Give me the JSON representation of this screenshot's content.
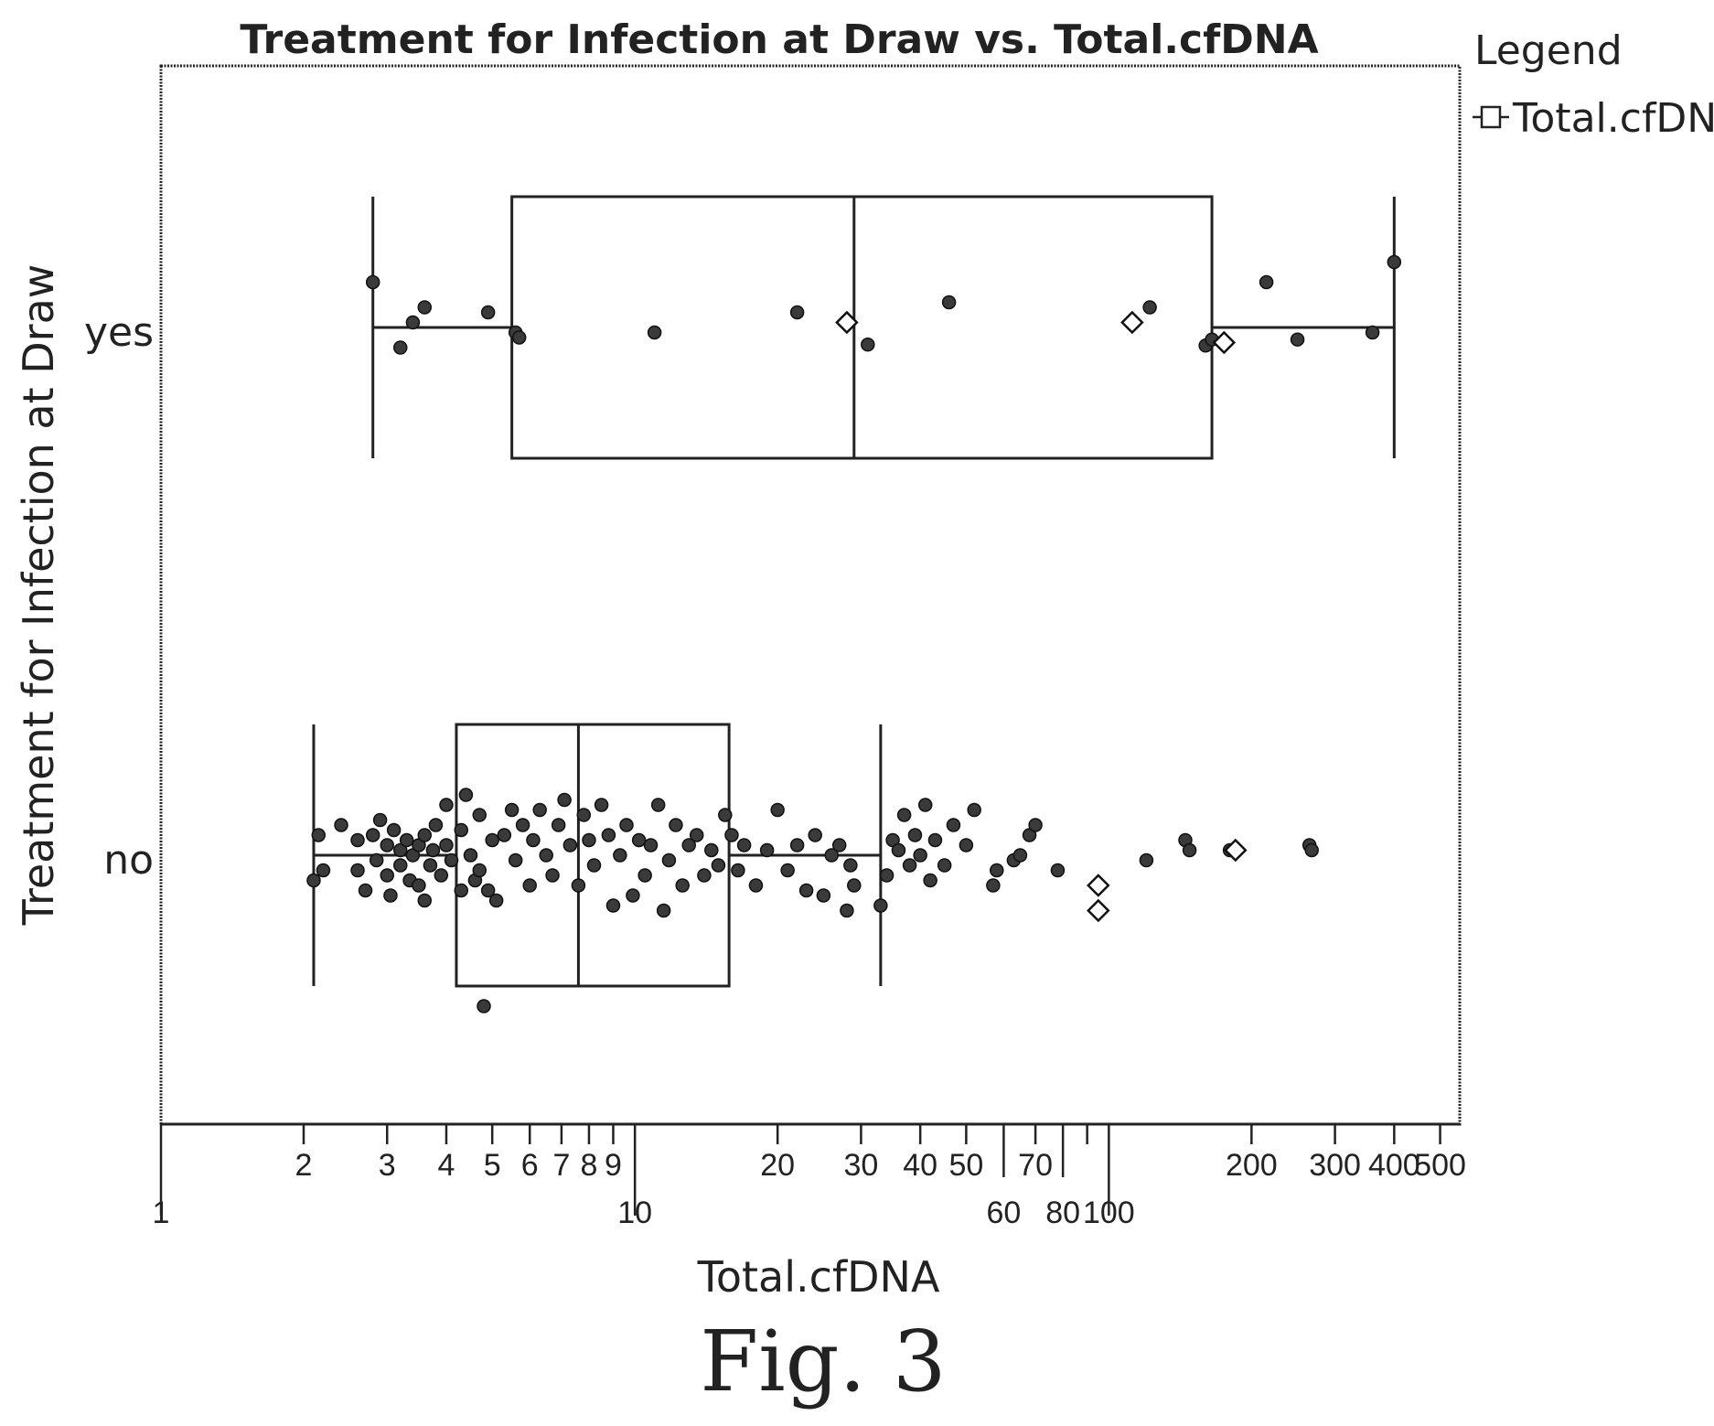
{
  "chart_data": {
    "type": "box",
    "title": "Treatment for Infection at Draw vs. Total.cfDNA",
    "xlabel": "Total.cfDNA",
    "ylabel": "Treatment for Infection at Draw",
    "x_scale": "log",
    "xlim": [
      1,
      550
    ],
    "x_ticks": [
      {
        "value": 1,
        "label": "1",
        "row": 2
      },
      {
        "value": 2,
        "label": "2",
        "row": 1
      },
      {
        "value": 3,
        "label": "3",
        "row": 1
      },
      {
        "value": 4,
        "label": "4",
        "row": 1
      },
      {
        "value": 5,
        "label": "5",
        "row": 1
      },
      {
        "value": 6,
        "label": "6",
        "row": 1
      },
      {
        "value": 7,
        "label": "7",
        "row": 1
      },
      {
        "value": 8,
        "label": "8",
        "row": 1
      },
      {
        "value": 9,
        "label": "9",
        "row": 1
      },
      {
        "value": 10,
        "label": "10",
        "row": 2
      },
      {
        "value": 20,
        "label": "20",
        "row": 1
      },
      {
        "value": 30,
        "label": "30",
        "row": 1
      },
      {
        "value": 40,
        "label": "40",
        "row": 1
      },
      {
        "value": 50,
        "label": "50",
        "row": 1
      },
      {
        "value": 60,
        "label": "60",
        "row": 2
      },
      {
        "value": 70,
        "label": "70",
        "row": 1
      },
      {
        "value": 80,
        "label": "80",
        "row": 2
      },
      {
        "value": 90,
        "label": "",
        "row": 1
      },
      {
        "value": 100,
        "label": "100",
        "row": 2
      },
      {
        "value": 200,
        "label": "200",
        "row": 1
      },
      {
        "value": 300,
        "label": "300",
        "row": 1
      },
      {
        "value": 400,
        "label": "400",
        "row": 1
      },
      {
        "value": 500,
        "label": "500",
        "row": 1
      }
    ],
    "categories": [
      "yes",
      "no"
    ],
    "boxes": [
      {
        "category": "yes",
        "whisker_low": 2.8,
        "q1": 5.5,
        "median": 29,
        "q3": 165,
        "whisker_high": 400
      },
      {
        "category": "no",
        "whisker_low": 2.1,
        "q1": 4.2,
        "median": 7.6,
        "q3": 15.8,
        "whisker_high": 33
      }
    ],
    "points": {
      "yes": [
        [
          2.8,
          0.45
        ],
        [
          3.2,
          -0.2
        ],
        [
          3.4,
          0.05
        ],
        [
          3.6,
          0.2
        ],
        [
          4.9,
          0.15
        ],
        [
          5.6,
          -0.05
        ],
        [
          5.7,
          -0.1
        ],
        [
          11,
          -0.05
        ],
        [
          22,
          0.15
        ],
        [
          31,
          -0.17
        ],
        [
          46,
          0.25
        ],
        [
          122,
          0.2
        ],
        [
          160,
          -0.18
        ],
        [
          165,
          -0.12
        ],
        [
          215,
          0.45
        ],
        [
          250,
          -0.12
        ],
        [
          360,
          -0.05
        ],
        [
          400,
          0.65
        ]
      ],
      "no": [
        [
          2.1,
          -0.25
        ],
        [
          2.15,
          0.2
        ],
        [
          2.2,
          -0.15
        ],
        [
          2.4,
          0.3
        ],
        [
          2.6,
          0.15
        ],
        [
          2.6,
          -0.15
        ],
        [
          2.7,
          -0.35
        ],
        [
          2.8,
          0.2
        ],
        [
          2.85,
          -0.05
        ],
        [
          2.9,
          0.35
        ],
        [
          3.0,
          0.1
        ],
        [
          3.0,
          -0.2
        ],
        [
          3.05,
          -0.4
        ],
        [
          3.1,
          0.25
        ],
        [
          3.2,
          0.05
        ],
        [
          3.2,
          -0.1
        ],
        [
          3.3,
          0.15
        ],
        [
          3.35,
          -0.25
        ],
        [
          3.4,
          0.0
        ],
        [
          3.5,
          0.1
        ],
        [
          3.5,
          -0.3
        ],
        [
          3.6,
          0.2
        ],
        [
          3.6,
          -0.45
        ],
        [
          3.7,
          -0.1
        ],
        [
          3.75,
          0.05
        ],
        [
          3.8,
          0.3
        ],
        [
          3.9,
          -0.2
        ],
        [
          4.0,
          0.5
        ],
        [
          4.0,
          0.1
        ],
        [
          4.1,
          -0.05
        ],
        [
          4.3,
          0.25
        ],
        [
          4.3,
          -0.35
        ],
        [
          4.4,
          0.6
        ],
        [
          4.5,
          0.0
        ],
        [
          4.6,
          -0.25
        ],
        [
          4.7,
          0.4
        ],
        [
          4.7,
          -0.15
        ],
        [
          4.8,
          -1.5
        ],
        [
          4.9,
          -0.35
        ],
        [
          5.0,
          0.15
        ],
        [
          5.1,
          -0.45
        ],
        [
          5.3,
          0.2
        ],
        [
          5.5,
          0.45
        ],
        [
          5.6,
          -0.05
        ],
        [
          5.8,
          0.3
        ],
        [
          6.0,
          -0.3
        ],
        [
          6.1,
          0.15
        ],
        [
          6.3,
          0.45
        ],
        [
          6.5,
          0.0
        ],
        [
          6.7,
          -0.2
        ],
        [
          6.9,
          0.3
        ],
        [
          7.1,
          0.55
        ],
        [
          7.3,
          0.1
        ],
        [
          7.6,
          -0.3
        ],
        [
          7.8,
          0.4
        ],
        [
          8.0,
          0.15
        ],
        [
          8.2,
          -0.1
        ],
        [
          8.5,
          0.5
        ],
        [
          8.8,
          0.2
        ],
        [
          9.0,
          -0.5
        ],
        [
          9.3,
          0.0
        ],
        [
          9.6,
          0.3
        ],
        [
          9.9,
          -0.4
        ],
        [
          10.2,
          0.15
        ],
        [
          10.5,
          -0.2
        ],
        [
          10.8,
          0.1
        ],
        [
          11.2,
          0.5
        ],
        [
          11.5,
          -0.55
        ],
        [
          11.8,
          -0.05
        ],
        [
          12.2,
          0.3
        ],
        [
          12.6,
          -0.3
        ],
        [
          13.0,
          0.1
        ],
        [
          13.5,
          0.2
        ],
        [
          14.0,
          -0.2
        ],
        [
          14.5,
          0.05
        ],
        [
          15.0,
          -0.1
        ],
        [
          15.5,
          0.4
        ],
        [
          16.0,
          0.2
        ],
        [
          16.5,
          -0.15
        ],
        [
          17.0,
          0.1
        ],
        [
          18.0,
          -0.3
        ],
        [
          19.0,
          0.05
        ],
        [
          20.0,
          0.45
        ],
        [
          21.0,
          -0.15
        ],
        [
          22.0,
          0.1
        ],
        [
          23.0,
          -0.35
        ],
        [
          24.0,
          0.2
        ],
        [
          25.0,
          -0.4
        ],
        [
          26.0,
          0.0
        ],
        [
          27.0,
          0.1
        ],
        [
          28.0,
          -0.55
        ],
        [
          28.5,
          -0.1
        ],
        [
          29.0,
          -0.3
        ],
        [
          33.0,
          -0.5
        ],
        [
          34.0,
          -0.2
        ],
        [
          35.0,
          0.15
        ],
        [
          36.0,
          0.05
        ],
        [
          37.0,
          0.4
        ],
        [
          38.0,
          -0.1
        ],
        [
          39.0,
          0.2
        ],
        [
          40.0,
          0.0
        ],
        [
          41.0,
          0.5
        ],
        [
          42.0,
          -0.25
        ],
        [
          43.0,
          0.15
        ],
        [
          45.0,
          -0.1
        ],
        [
          47.0,
          0.3
        ],
        [
          50.0,
          0.1
        ],
        [
          52.0,
          0.45
        ],
        [
          57.0,
          -0.3
        ],
        [
          58.0,
          -0.15
        ],
        [
          63.0,
          -0.05
        ],
        [
          65.0,
          0.0
        ],
        [
          68.0,
          0.2
        ],
        [
          70.0,
          0.3
        ],
        [
          78.0,
          -0.15
        ],
        [
          120.0,
          -0.05
        ],
        [
          145.0,
          0.15
        ],
        [
          148.0,
          0.05
        ],
        [
          180.0,
          0.05
        ],
        [
          265.0,
          0.1
        ],
        [
          268.0,
          0.05
        ]
      ]
    },
    "means": [
      {
        "category": "yes",
        "x": 28,
        "jitter": 0.05
      },
      {
        "category": "yes",
        "x": 112,
        "jitter": 0.05
      },
      {
        "category": "yes",
        "x": 175,
        "jitter": -0.15
      },
      {
        "category": "no",
        "x": 95,
        "jitter": -0.3
      },
      {
        "category": "no",
        "x": 95,
        "jitter": -0.55
      },
      {
        "category": "no",
        "x": 185,
        "jitter": 0.05
      }
    ],
    "legend": {
      "title": "Legend",
      "entries": [
        "Total.cfDNA"
      ],
      "position": "top-right"
    },
    "caption": "Fig. 3"
  }
}
